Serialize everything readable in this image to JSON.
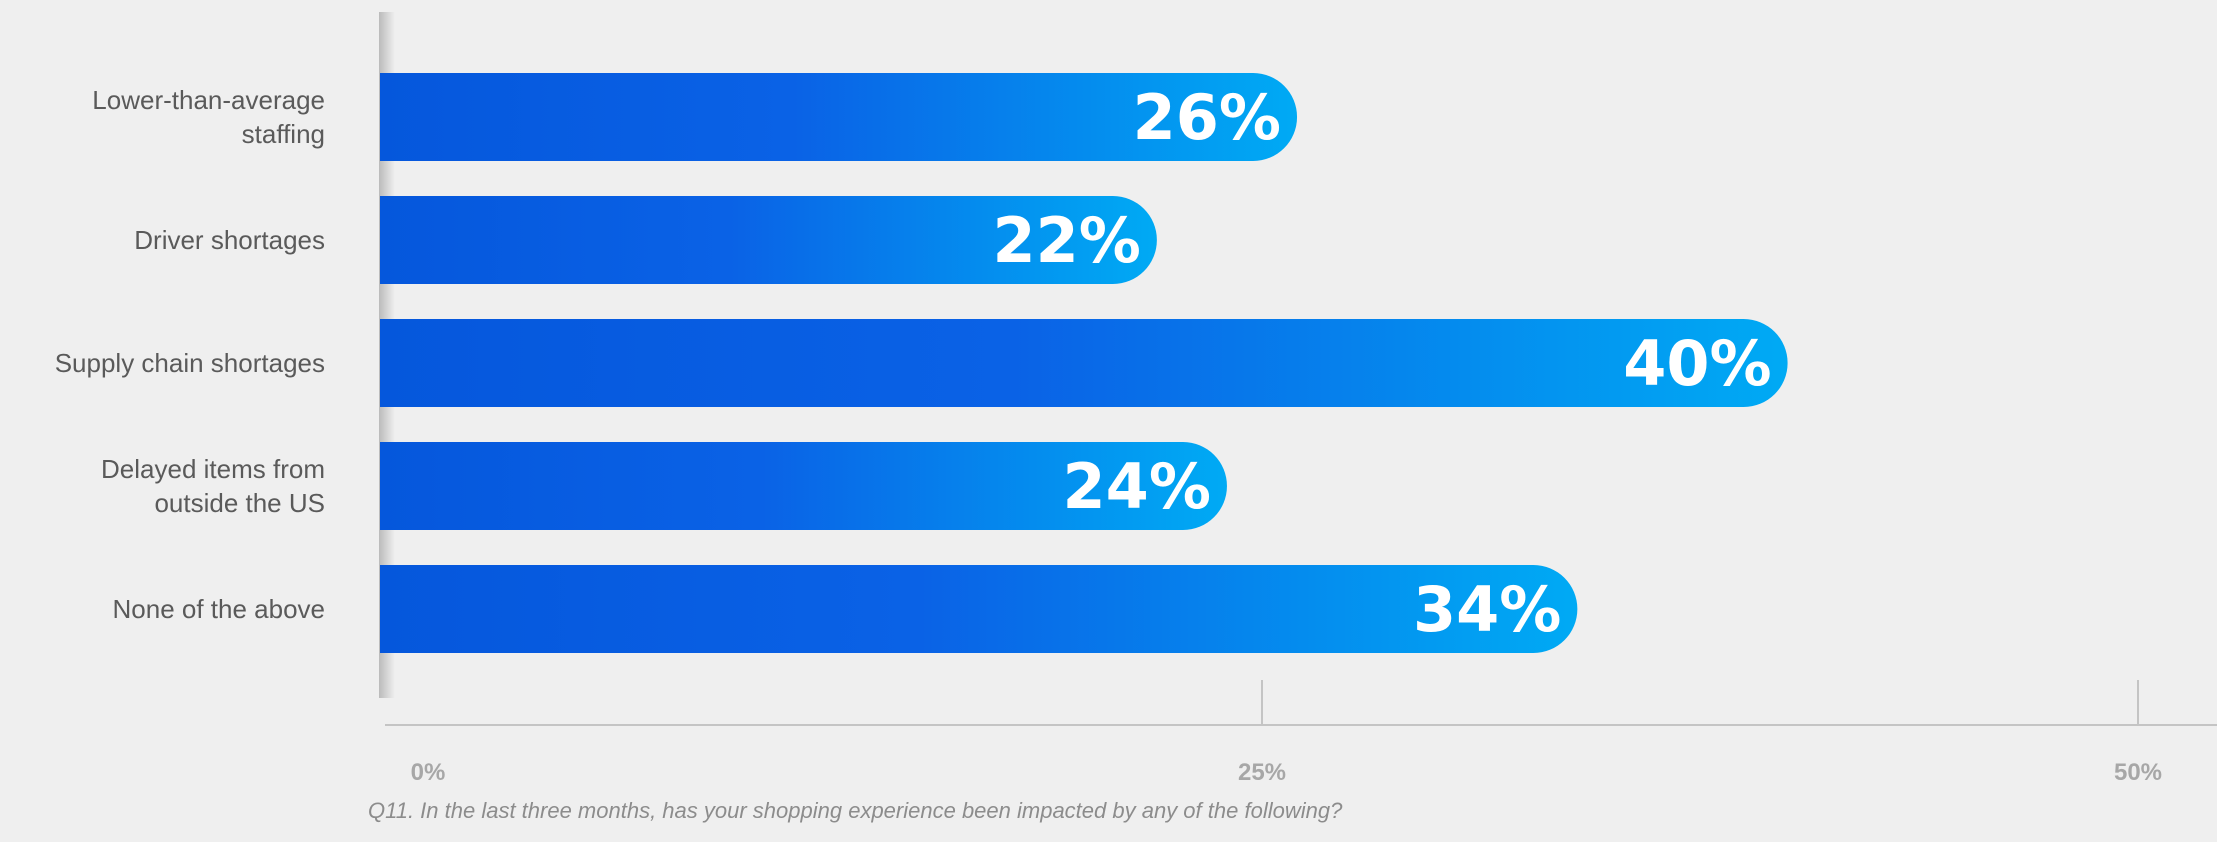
{
  "chart_data": {
    "type": "bar",
    "orientation": "horizontal",
    "categories": [
      [
        "Lower-than-average",
        "staffing"
      ],
      [
        "Driver shortages"
      ],
      [
        "Supply chain shortages"
      ],
      [
        "Delayed items from",
        "outside the US"
      ],
      [
        "None of the above"
      ]
    ],
    "values": [
      26,
      22,
      40,
      24,
      34
    ],
    "value_labels": [
      "26%",
      "22%",
      "40%",
      "24%",
      "34%"
    ],
    "xlim": [
      0,
      50
    ],
    "x_ticks": [
      0,
      25,
      50
    ],
    "x_tick_labels": [
      "0%",
      "25%",
      "50%"
    ],
    "grid": false,
    "colors": {
      "bar_start": "#0557dc",
      "bar_mid": "#0a62e6",
      "bar_end": "#00aaf4",
      "axis": "#c4c4c4",
      "background": "#efefef"
    }
  },
  "footnote": "Q11. In the last three months, has your shopping experience been impacted by any of the  following?"
}
